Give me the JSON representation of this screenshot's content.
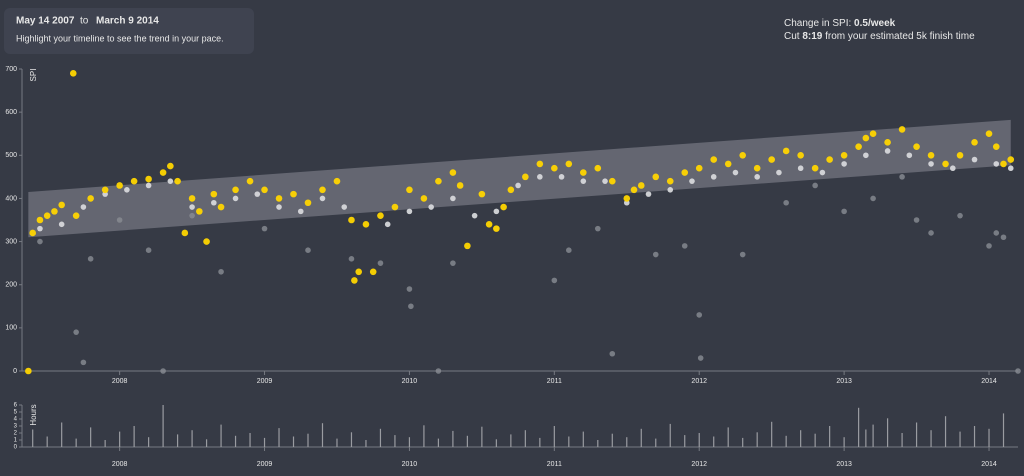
{
  "header": {
    "date_from": "May 14 2007",
    "to": "to",
    "date_to": "March 9 2014",
    "hint": "Highlight your timeline to see the trend in your pace."
  },
  "stats": {
    "change_label": "Change in SPI:",
    "change_value": "0.5/week",
    "cut_label": "Cut",
    "cut_value": "8:19",
    "cut_suffix": "from your estimated 5k finish time"
  },
  "chart_data": [
    {
      "type": "scatter",
      "ylabel": "SPI",
      "xlim": [
        2007.34,
        2014.2
      ],
      "ylim": [
        0,
        700
      ],
      "yticks": [
        0,
        100,
        200,
        300,
        400,
        500,
        600,
        700
      ],
      "xticks": [
        2008,
        2009,
        2010,
        2011,
        2012,
        2013,
        2014
      ],
      "trend_band": {
        "x": [
          2007.37,
          2014.15
        ],
        "lower": [
          310,
          477
        ],
        "upper": [
          415,
          582
        ]
      },
      "series": [
        {
          "color": "#8a8d93",
          "x": [
            2007.45,
            2007.7,
            2007.75,
            2007.8,
            2008.0,
            2008.2,
            2008.3,
            2008.5,
            2008.7,
            2009.0,
            2009.3,
            2009.6,
            2009.8,
            2010.0,
            2010.01,
            2010.2,
            2010.3,
            2010.6,
            2011.0,
            2011.1,
            2011.3,
            2011.4,
            2011.7,
            2011.9,
            2012.0,
            2012.01,
            2012.3,
            2012.6,
            2012.8,
            2013.0,
            2013.2,
            2013.4,
            2013.5,
            2013.6,
            2013.8,
            2014.0,
            2014.05,
            2014.1,
            2014.2
          ],
          "values": [
            300,
            90,
            20,
            260,
            350,
            280,
            0,
            360,
            230,
            330,
            280,
            260,
            250,
            190,
            150,
            0,
            250,
            330,
            210,
            280,
            330,
            40,
            270,
            290,
            130,
            30,
            270,
            390,
            430,
            370,
            400,
            450,
            350,
            320,
            360,
            290,
            320,
            310,
            0
          ]
        },
        {
          "color": "#d6d7da",
          "x": [
            2007.45,
            2007.6,
            2007.75,
            2007.9,
            2008.05,
            2008.2,
            2008.35,
            2008.5,
            2008.65,
            2008.8,
            2008.95,
            2009.1,
            2009.25,
            2009.4,
            2009.55,
            2009.85,
            2010.0,
            2010.15,
            2010.3,
            2010.45,
            2010.6,
            2010.75,
            2010.9,
            2011.05,
            2011.2,
            2011.35,
            2011.5,
            2011.65,
            2011.8,
            2011.95,
            2012.1,
            2012.25,
            2012.4,
            2012.55,
            2012.7,
            2012.85,
            2013.0,
            2013.15,
            2013.3,
            2013.45,
            2013.6,
            2013.75,
            2013.9,
            2014.05,
            2014.15
          ],
          "values": [
            330,
            340,
            380,
            410,
            420,
            430,
            440,
            380,
            390,
            400,
            410,
            380,
            370,
            400,
            380,
            340,
            370,
            380,
            400,
            360,
            370,
            430,
            450,
            450,
            440,
            440,
            390,
            410,
            420,
            440,
            450,
            460,
            450,
            460,
            470,
            460,
            480,
            500,
            510,
            500,
            480,
            470,
            490,
            480,
            470
          ]
        },
        {
          "color": "#ffd500",
          "x": [
            2007.37,
            2007.4,
            2007.45,
            2007.5,
            2007.55,
            2007.6,
            2007.68,
            2007.7,
            2007.8,
            2007.9,
            2008.0,
            2008.1,
            2008.2,
            2008.3,
            2008.35,
            2008.4,
            2008.45,
            2008.5,
            2008.55,
            2008.6,
            2008.65,
            2008.7,
            2008.8,
            2008.9,
            2009.0,
            2009.1,
            2009.2,
            2009.3,
            2009.4,
            2009.5,
            2009.6,
            2009.62,
            2009.65,
            2009.7,
            2009.75,
            2009.8,
            2009.9,
            2010.0,
            2010.1,
            2010.2,
            2010.3,
            2010.35,
            2010.4,
            2010.5,
            2010.55,
            2010.6,
            2010.65,
            2010.7,
            2010.8,
            2010.9,
            2011.0,
            2011.1,
            2011.2,
            2011.3,
            2011.4,
            2011.5,
            2011.55,
            2011.6,
            2011.7,
            2011.8,
            2011.9,
            2012.0,
            2012.1,
            2012.2,
            2012.3,
            2012.4,
            2012.5,
            2012.6,
            2012.7,
            2012.8,
            2012.9,
            2013.0,
            2013.1,
            2013.15,
            2013.2,
            2013.3,
            2013.4,
            2013.5,
            2013.6,
            2013.7,
            2013.8,
            2013.9,
            2014.0,
            2014.05,
            2014.1,
            2014.15
          ],
          "values": [
            0,
            320,
            350,
            360,
            370,
            385,
            690,
            360,
            400,
            420,
            430,
            440,
            445,
            460,
            475,
            440,
            320,
            400,
            370,
            300,
            410,
            380,
            420,
            440,
            420,
            400,
            410,
            390,
            420,
            440,
            350,
            210,
            230,
            340,
            230,
            360,
            380,
            420,
            400,
            440,
            460,
            430,
            290,
            410,
            340,
            330,
            380,
            420,
            450,
            480,
            470,
            480,
            460,
            470,
            440,
            400,
            420,
            430,
            450,
            440,
            460,
            470,
            490,
            480,
            500,
            470,
            490,
            510,
            500,
            470,
            490,
            500,
            520,
            540,
            550,
            530,
            560,
            520,
            500,
            480,
            500,
            530,
            550,
            520,
            480,
            490
          ]
        }
      ]
    },
    {
      "type": "bar",
      "ylabel": "Hours",
      "xlim": [
        2007.34,
        2014.2
      ],
      "ylim": [
        0,
        6
      ],
      "yticks": [
        0,
        1,
        2,
        3,
        4,
        5,
        6
      ],
      "xticks": [
        2008,
        2009,
        2010,
        2011,
        2012,
        2013,
        2014
      ],
      "color": "#9a9ca1",
      "x": [
        2007.4,
        2007.5,
        2007.6,
        2007.7,
        2007.8,
        2007.9,
        2008.0,
        2008.1,
        2008.2,
        2008.3,
        2008.4,
        2008.5,
        2008.6,
        2008.7,
        2008.8,
        2008.9,
        2009.0,
        2009.1,
        2009.2,
        2009.3,
        2009.4,
        2009.5,
        2009.6,
        2009.7,
        2009.8,
        2009.9,
        2010.0,
        2010.1,
        2010.2,
        2010.3,
        2010.4,
        2010.5,
        2010.6,
        2010.7,
        2010.8,
        2010.9,
        2011.0,
        2011.1,
        2011.2,
        2011.3,
        2011.4,
        2011.5,
        2011.6,
        2011.7,
        2011.8,
        2011.9,
        2012.0,
        2012.1,
        2012.2,
        2012.3,
        2012.4,
        2012.5,
        2012.6,
        2012.7,
        2012.8,
        2012.9,
        2013.0,
        2013.1,
        2013.15,
        2013.2,
        2013.3,
        2013.4,
        2013.5,
        2013.6,
        2013.7,
        2013.8,
        2013.9,
        2014.0,
        2014.1
      ],
      "values": [
        2.5,
        1.5,
        3.5,
        1.2,
        2.8,
        1.0,
        2.2,
        3.0,
        1.4,
        6.0,
        1.8,
        2.4,
        1.1,
        3.2,
        1.6,
        2.0,
        1.3,
        2.7,
        1.5,
        1.9,
        3.4,
        1.2,
        2.1,
        1.0,
        2.6,
        1.7,
        1.4,
        3.1,
        1.2,
        2.3,
        1.6,
        2.9,
        1.1,
        1.8,
        2.4,
        1.3,
        3.0,
        1.5,
        2.2,
        1.0,
        1.9,
        1.4,
        2.6,
        1.2,
        3.3,
        1.7,
        2.0,
        1.5,
        2.8,
        1.3,
        2.1,
        3.6,
        1.6,
        2.4,
        1.9,
        3.0,
        1.4,
        5.6,
        2.5,
        3.2,
        4.1,
        2.0,
        3.5,
        2.4,
        4.4,
        2.2,
        3.0,
        2.6,
        4.8
      ]
    }
  ]
}
